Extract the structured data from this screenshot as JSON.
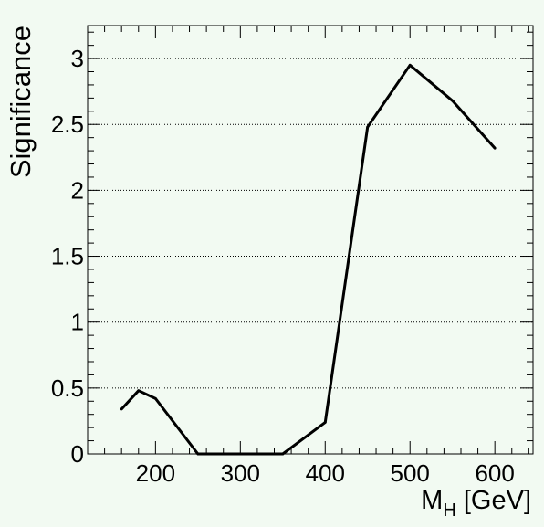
{
  "chart_data": {
    "type": "line",
    "title": "",
    "xlabel": "M",
    "xlabel_sub": "H",
    "xlabel_unit": " [GeV]",
    "ylabel": "Significance",
    "xlim": [
      120,
      645
    ],
    "ylim": [
      0,
      3.25
    ],
    "x_ticks": [
      200,
      300,
      400,
      500,
      600
    ],
    "x_tick_labels": [
      "200",
      "300",
      "400",
      "500",
      "600"
    ],
    "y_ticks": [
      0,
      0.5,
      1,
      1.5,
      2,
      2.5,
      3
    ],
    "y_tick_labels": [
      "0",
      "0.5",
      "1",
      "1.5",
      "2",
      "2.5",
      "3"
    ],
    "grid": "horizontal dotted",
    "series": [
      {
        "x": [
          160,
          180,
          200,
          250,
          300,
          350,
          400,
          450,
          500,
          550,
          600
        ],
        "y": [
          0.34,
          0.48,
          0.42,
          0.0,
          0.0,
          0.0,
          0.24,
          2.48,
          2.95,
          2.68,
          2.32
        ]
      }
    ],
    "colors": {
      "background": "#f2faf2",
      "line": "#000000",
      "grid": "#000000"
    }
  }
}
